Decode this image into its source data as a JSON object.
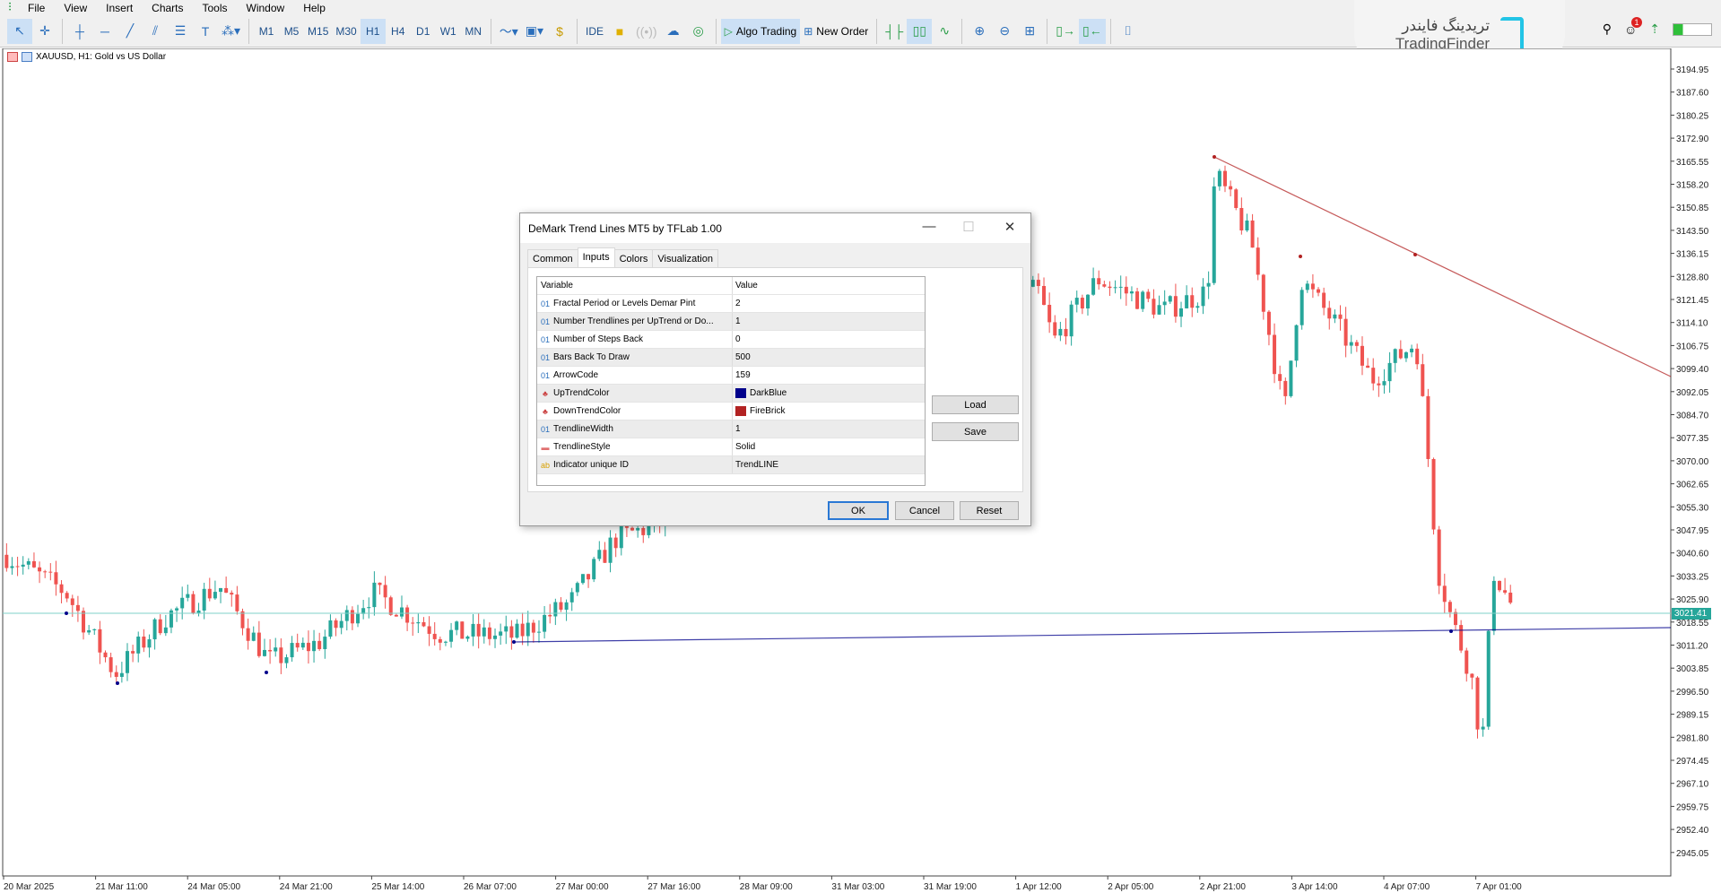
{
  "menu": [
    "File",
    "View",
    "Insert",
    "Charts",
    "Tools",
    "Window",
    "Help"
  ],
  "toolbar": {
    "timeframes": [
      "M1",
      "M5",
      "M15",
      "M30",
      "H1",
      "H4",
      "D1",
      "W1",
      "MN"
    ],
    "selected_timeframe": "H1",
    "ide": "IDE",
    "algo_trading": "Algo Trading",
    "new_order": "New Order",
    "notification_count": "1"
  },
  "brand": {
    "persian": "تریدینگ فایندر",
    "latin": "TradingFinder"
  },
  "chart": {
    "title": "XAUUSD, H1:  Gold vs US Dollar",
    "current_price": "3021.41",
    "price_ticks": [
      "3194.95",
      "3187.60",
      "3180.25",
      "3172.90",
      "3165.55",
      "3158.20",
      "3150.85",
      "3143.50",
      "3136.15",
      "3128.80",
      "3121.45",
      "3114.10",
      "3106.75",
      "3099.40",
      "3092.05",
      "3084.70",
      "3077.35",
      "3070.00",
      "3062.65",
      "3055.30",
      "3047.95",
      "3040.60",
      "3033.25",
      "3025.90",
      "3018.55",
      "3011.20",
      "3003.85",
      "2996.50",
      "2989.15",
      "2981.80",
      "2974.45",
      "2967.10",
      "2959.75",
      "2952.40",
      "2945.05"
    ],
    "time_ticks": [
      "20 Mar 2025",
      "21 Mar 11:00",
      "24 Mar 05:00",
      "24 Mar 21:00",
      "25 Mar 14:00",
      "26 Mar 07:00",
      "27 Mar 00:00",
      "27 Mar 16:00",
      "28 Mar 09:00",
      "31 Mar 03:00",
      "31 Mar 19:00",
      "1 Apr 12:00",
      "2 Apr 05:00",
      "2 Apr 21:00",
      "3 Apr 14:00",
      "4 Apr 07:00",
      "7 Apr 01:00"
    ],
    "colors": {
      "bull": "#26a69a",
      "bear": "#ef5350",
      "uptrend": "#00008b",
      "downtrend": "#b22222",
      "price_line": "#7fd1c8"
    }
  },
  "dialog": {
    "title": "DeMark Trend Lines MT5 by TFLab 1.00",
    "tabs": [
      "Common",
      "Inputs",
      "Colors",
      "Visualization"
    ],
    "active_tab": "Inputs",
    "columns": [
      "Variable",
      "Value"
    ],
    "rows": [
      {
        "icon": "01",
        "variable": "Fractal Period or Levels Demar Pint",
        "value": "2"
      },
      {
        "icon": "01",
        "variable": "Number  Trendlines per UpTrend or Do...",
        "value": "1"
      },
      {
        "icon": "01",
        "variable": "Number of Steps Back",
        "value": "0"
      },
      {
        "icon": "01",
        "variable": "Bars Back To Draw",
        "value": "500"
      },
      {
        "icon": "01",
        "variable": "ArrowCode",
        "value": "159"
      },
      {
        "icon": "color",
        "variable": "UpTrendColor",
        "value": "DarkBlue",
        "swatch": "#00008b"
      },
      {
        "icon": "color",
        "variable": "DownTrendColor",
        "value": "FireBrick",
        "swatch": "#b22222"
      },
      {
        "icon": "01",
        "variable": "TrendlineWidth",
        "value": "1"
      },
      {
        "icon": "style",
        "variable": "TrendlineStyle",
        "value": "Solid"
      },
      {
        "icon": "ab",
        "variable": "Indicator unique ID",
        "value": "TrendLINE"
      }
    ],
    "buttons": {
      "load": "Load",
      "save": "Save",
      "ok": "OK",
      "cancel": "Cancel",
      "reset": "Reset"
    }
  }
}
